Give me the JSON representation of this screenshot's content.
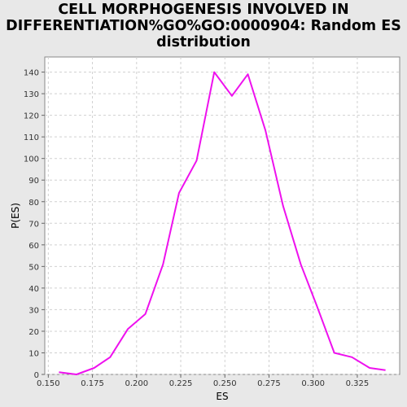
{
  "chart_data": {
    "type": "line",
    "title_lines": [
      "CELL MORPHOGENESIS INVOLVED IN",
      "DIFFERENTIATION%GO%GO:0000904: Random ES",
      "distribution"
    ],
    "xlabel": "ES",
    "ylabel": "P(ES)",
    "xlim": [
      0.148,
      0.349
    ],
    "ylim": [
      0,
      147
    ],
    "x_ticks": [
      0.15,
      0.175,
      0.2,
      0.225,
      0.25,
      0.275,
      0.3,
      0.325
    ],
    "x_tick_labels": [
      "0.150",
      "0.175",
      "0.200",
      "0.225",
      "0.250",
      "0.275",
      "0.300",
      "0.325"
    ],
    "y_ticks": [
      0,
      10,
      20,
      30,
      40,
      50,
      60,
      70,
      80,
      90,
      100,
      110,
      120,
      130,
      140
    ],
    "y_tick_labels": [
      "0",
      "10",
      "20",
      "30",
      "40",
      "50",
      "60",
      "70",
      "80",
      "90",
      "100",
      "110",
      "120",
      "130",
      "140"
    ],
    "grid": true,
    "colors": {
      "line": "#ee11ee",
      "plot_bg": "#ffffff",
      "grid": "#d0d0d0",
      "page_bg": "#e8e8e8"
    },
    "series": [
      {
        "x": [
          0.156,
          0.166,
          0.176,
          0.185,
          0.195,
          0.205,
          0.215,
          0.224,
          0.234,
          0.244,
          0.254,
          0.263,
          0.273,
          0.283,
          0.293,
          0.302,
          0.312,
          0.322,
          0.332,
          0.341
        ],
        "y": [
          1,
          0,
          3,
          8,
          21,
          28,
          51,
          84,
          99,
          140,
          129,
          139,
          113,
          78,
          51,
          32,
          10,
          8,
          3,
          2
        ]
      }
    ]
  }
}
